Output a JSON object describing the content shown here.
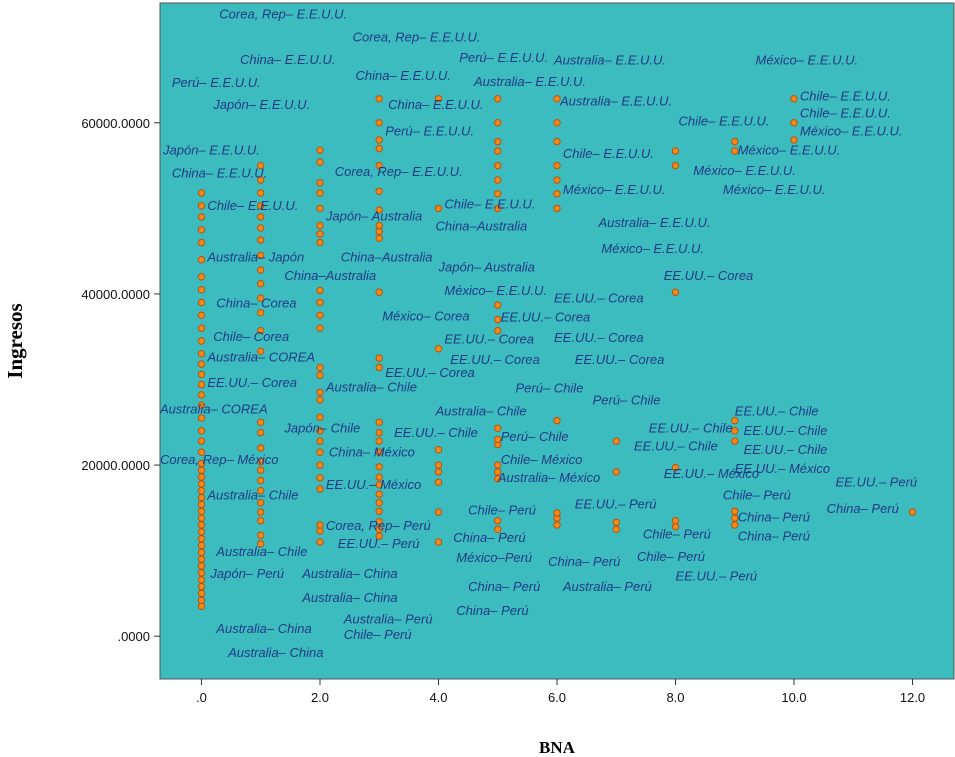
{
  "chart_data": {
    "type": "scatter",
    "title": "",
    "xlabel": "BNA",
    "ylabel": "Ingresos",
    "xlim": [
      -0.7,
      12.7
    ],
    "ylim": [
      -5000,
      74000
    ],
    "x_ticks": [
      ".0",
      "2.0",
      "4.0",
      "6.0",
      "8.0",
      "10.0",
      "12.0"
    ],
    "y_ticks": [
      ".0000",
      "20000.0000",
      "40000.0000",
      "60000.0000"
    ],
    "grid": false,
    "colors": {
      "plot_bg": "#3dbcc0",
      "marker_fill": "#f08a1c",
      "marker_stroke": "#b5520a",
      "label_text": "#1f3b84"
    },
    "points": [
      {
        "x": 0,
        "y": 3500
      },
      {
        "x": 0,
        "y": 4200
      },
      {
        "x": 0,
        "y": 5000
      },
      {
        "x": 0,
        "y": 5800
      },
      {
        "x": 0,
        "y": 6600
      },
      {
        "x": 0,
        "y": 7400
      },
      {
        "x": 0,
        "y": 8200
      },
      {
        "x": 0,
        "y": 9000
      },
      {
        "x": 0,
        "y": 9800
      },
      {
        "x": 0,
        "y": 10600
      },
      {
        "x": 0,
        "y": 11400
      },
      {
        "x": 0,
        "y": 12200
      },
      {
        "x": 0,
        "y": 13000
      },
      {
        "x": 0,
        "y": 13800
      },
      {
        "x": 0,
        "y": 14600
      },
      {
        "x": 0,
        "y": 15400
      },
      {
        "x": 0,
        "y": 16200
      },
      {
        "x": 0,
        "y": 17000
      },
      {
        "x": 0,
        "y": 17800
      },
      {
        "x": 0,
        "y": 18600
      },
      {
        "x": 0,
        "y": 19400
      },
      {
        "x": 0,
        "y": 20200
      },
      {
        "x": 0,
        "y": 21500
      },
      {
        "x": 0,
        "y": 22800
      },
      {
        "x": 0,
        "y": 24000
      },
      {
        "x": 0,
        "y": 25500
      },
      {
        "x": 0,
        "y": 27000
      },
      {
        "x": 0,
        "y": 28200
      },
      {
        "x": 0,
        "y": 29400
      },
      {
        "x": 0,
        "y": 30600
      },
      {
        "x": 0,
        "y": 31800
      },
      {
        "x": 0,
        "y": 33000
      },
      {
        "x": 0,
        "y": 34500
      },
      {
        "x": 0,
        "y": 36000
      },
      {
        "x": 0,
        "y": 37500
      },
      {
        "x": 0,
        "y": 39000
      },
      {
        "x": 0,
        "y": 40500
      },
      {
        "x": 0,
        "y": 42000
      },
      {
        "x": 0,
        "y": 44000
      },
      {
        "x": 0,
        "y": 46000
      },
      {
        "x": 0,
        "y": 47500
      },
      {
        "x": 0,
        "y": 49000
      },
      {
        "x": 0,
        "y": 50300
      },
      {
        "x": 0,
        "y": 51800
      },
      {
        "x": 1,
        "y": 10800
      },
      {
        "x": 1,
        "y": 11800
      },
      {
        "x": 1,
        "y": 13500
      },
      {
        "x": 1,
        "y": 14500
      },
      {
        "x": 1,
        "y": 15600
      },
      {
        "x": 1,
        "y": 17000
      },
      {
        "x": 1,
        "y": 18200
      },
      {
        "x": 1,
        "y": 19400
      },
      {
        "x": 1,
        "y": 20400
      },
      {
        "x": 1,
        "y": 22000
      },
      {
        "x": 1,
        "y": 23800
      },
      {
        "x": 1,
        "y": 25000
      },
      {
        "x": 1,
        "y": 33300
      },
      {
        "x": 1,
        "y": 35700
      },
      {
        "x": 1,
        "y": 37800
      },
      {
        "x": 1,
        "y": 39500
      },
      {
        "x": 1,
        "y": 41200
      },
      {
        "x": 1,
        "y": 42800
      },
      {
        "x": 1,
        "y": 44500
      },
      {
        "x": 1,
        "y": 46300
      },
      {
        "x": 1,
        "y": 47700
      },
      {
        "x": 1,
        "y": 49000
      },
      {
        "x": 1,
        "y": 50300
      },
      {
        "x": 1,
        "y": 51800
      },
      {
        "x": 1,
        "y": 53300
      },
      {
        "x": 1,
        "y": 55000
      },
      {
        "x": 2,
        "y": 11000
      },
      {
        "x": 2,
        "y": 12300
      },
      {
        "x": 2,
        "y": 13000
      },
      {
        "x": 2,
        "y": 17200
      },
      {
        "x": 2,
        "y": 18500
      },
      {
        "x": 2,
        "y": 20000
      },
      {
        "x": 2,
        "y": 21500
      },
      {
        "x": 2,
        "y": 22800
      },
      {
        "x": 2,
        "y": 24000
      },
      {
        "x": 2,
        "y": 25600
      },
      {
        "x": 2,
        "y": 27600
      },
      {
        "x": 2,
        "y": 28500
      },
      {
        "x": 2,
        "y": 30500
      },
      {
        "x": 2,
        "y": 31400
      },
      {
        "x": 2,
        "y": 36000
      },
      {
        "x": 2,
        "y": 37500
      },
      {
        "x": 2,
        "y": 39000
      },
      {
        "x": 2,
        "y": 40400
      },
      {
        "x": 2,
        "y": 46000
      },
      {
        "x": 2,
        "y": 47000
      },
      {
        "x": 2,
        "y": 48000
      },
      {
        "x": 2,
        "y": 50000
      },
      {
        "x": 2,
        "y": 51800
      },
      {
        "x": 2,
        "y": 53000
      },
      {
        "x": 2,
        "y": 55400
      },
      {
        "x": 2,
        "y": 56800
      },
      {
        "x": 3,
        "y": 11700
      },
      {
        "x": 3,
        "y": 12500
      },
      {
        "x": 3,
        "y": 13400
      },
      {
        "x": 3,
        "y": 14600
      },
      {
        "x": 3,
        "y": 15600
      },
      {
        "x": 3,
        "y": 16600
      },
      {
        "x": 3,
        "y": 17700
      },
      {
        "x": 3,
        "y": 18600
      },
      {
        "x": 3,
        "y": 19800
      },
      {
        "x": 3,
        "y": 21500
      },
      {
        "x": 3,
        "y": 22800
      },
      {
        "x": 3,
        "y": 23800
      },
      {
        "x": 3,
        "y": 25000
      },
      {
        "x": 3,
        "y": 31400
      },
      {
        "x": 3,
        "y": 32500
      },
      {
        "x": 3,
        "y": 40200
      },
      {
        "x": 3,
        "y": 46500
      },
      {
        "x": 3,
        "y": 47300
      },
      {
        "x": 3,
        "y": 48000
      },
      {
        "x": 3,
        "y": 49800
      },
      {
        "x": 3,
        "y": 52000
      },
      {
        "x": 3,
        "y": 55000
      },
      {
        "x": 3,
        "y": 57000
      },
      {
        "x": 3,
        "y": 58000
      },
      {
        "x": 3,
        "y": 60000
      },
      {
        "x": 3,
        "y": 62800
      },
      {
        "x": 4,
        "y": 11000
      },
      {
        "x": 4,
        "y": 14500
      },
      {
        "x": 4,
        "y": 18000
      },
      {
        "x": 4,
        "y": 19200
      },
      {
        "x": 4,
        "y": 20000
      },
      {
        "x": 4,
        "y": 21800
      },
      {
        "x": 4,
        "y": 33600
      },
      {
        "x": 4,
        "y": 50000
      },
      {
        "x": 4,
        "y": 62800
      },
      {
        "x": 5,
        "y": 12500
      },
      {
        "x": 5,
        "y": 13500
      },
      {
        "x": 5,
        "y": 18400
      },
      {
        "x": 5,
        "y": 19200
      },
      {
        "x": 5,
        "y": 20000
      },
      {
        "x": 5,
        "y": 22400
      },
      {
        "x": 5,
        "y": 23000
      },
      {
        "x": 5,
        "y": 24300
      },
      {
        "x": 5,
        "y": 35700
      },
      {
        "x": 5,
        "y": 37000
      },
      {
        "x": 5,
        "y": 38700
      },
      {
        "x": 5,
        "y": 50000
      },
      {
        "x": 5,
        "y": 51700
      },
      {
        "x": 5,
        "y": 53300
      },
      {
        "x": 5,
        "y": 55000
      },
      {
        "x": 5,
        "y": 56700
      },
      {
        "x": 5,
        "y": 57800
      },
      {
        "x": 5,
        "y": 60000
      },
      {
        "x": 5,
        "y": 62800
      },
      {
        "x": 6,
        "y": 13000
      },
      {
        "x": 6,
        "y": 13800
      },
      {
        "x": 6,
        "y": 14400
      },
      {
        "x": 6,
        "y": 25200
      },
      {
        "x": 6,
        "y": 50000
      },
      {
        "x": 6,
        "y": 51700
      },
      {
        "x": 6,
        "y": 53300
      },
      {
        "x": 6,
        "y": 55000
      },
      {
        "x": 6,
        "y": 57800
      },
      {
        "x": 6,
        "y": 60000
      },
      {
        "x": 6,
        "y": 62800
      },
      {
        "x": 7,
        "y": 12500
      },
      {
        "x": 7,
        "y": 13300
      },
      {
        "x": 7,
        "y": 19200
      },
      {
        "x": 7,
        "y": 22800
      },
      {
        "x": 8,
        "y": 12800
      },
      {
        "x": 8,
        "y": 13500
      },
      {
        "x": 8,
        "y": 19700
      },
      {
        "x": 8,
        "y": 40200
      },
      {
        "x": 8,
        "y": 55000
      },
      {
        "x": 8,
        "y": 56700
      },
      {
        "x": 9,
        "y": 13000
      },
      {
        "x": 9,
        "y": 13800
      },
      {
        "x": 9,
        "y": 14600
      },
      {
        "x": 9,
        "y": 22800
      },
      {
        "x": 9,
        "y": 24000
      },
      {
        "x": 9,
        "y": 25200
      },
      {
        "x": 9,
        "y": 56700
      },
      {
        "x": 9,
        "y": 57800
      },
      {
        "x": 10,
        "y": 58000
      },
      {
        "x": 10,
        "y": 60000
      },
      {
        "x": 10,
        "y": 62800
      },
      {
        "x": 12,
        "y": 14500
      }
    ],
    "annotations": [
      {
        "text": "Corea, Rep– E.E.U.U.",
        "x": 0.3,
        "y": 72200
      },
      {
        "text": "Corea, Rep– E.E.U.U.",
        "x": 2.55,
        "y": 69500
      },
      {
        "text": "China– E.E.U.U.",
        "x": 0.65,
        "y": 66900
      },
      {
        "text": "Perú– E.E.U.U.",
        "x": 4.35,
        "y": 67100
      },
      {
        "text": "Australia– E.E.U.U.",
        "x": 5.95,
        "y": 66800
      },
      {
        "text": "México– E.E.U.U.",
        "x": 9.35,
        "y": 66800
      },
      {
        "text": "Perú– E.E.U.U.",
        "x": -0.5,
        "y": 64200
      },
      {
        "text": "China– E.E.U.U.",
        "x": 2.6,
        "y": 65000
      },
      {
        "text": "Australia– E.E.U.U.",
        "x": 4.6,
        "y": 64300
      },
      {
        "text": "Chile– E.E.U.U.",
        "x": 10.1,
        "y": 62600
      },
      {
        "text": "Japón– E.E.U.U.",
        "x": 0.2,
        "y": 61600
      },
      {
        "text": "China– E.E.U.U.",
        "x": 3.15,
        "y": 61600
      },
      {
        "text": "Australia– E.E.U.U.",
        "x": 6.05,
        "y": 62000
      },
      {
        "text": "Chile– E.E.U.U.",
        "x": 8.05,
        "y": 59700
      },
      {
        "text": "Chile– E.E.U.U.",
        "x": 10.1,
        "y": 60600
      },
      {
        "text": "Perú– E.E.U.U.",
        "x": 3.1,
        "y": 58500
      },
      {
        "text": "México– E.E.U.U.",
        "x": 10.1,
        "y": 58500
      },
      {
        "text": "Japón– E.E.U.U.",
        "x": -0.65,
        "y": 56300
      },
      {
        "text": "Chile– E.E.U.U.",
        "x": 6.1,
        "y": 55900
      },
      {
        "text": "México– E.E.U.U.",
        "x": 9.05,
        "y": 56300
      },
      {
        "text": "Corea, Rep– E.E.U.U.",
        "x": 2.25,
        "y": 53800
      },
      {
        "text": "México– E.E.U.U.",
        "x": 8.3,
        "y": 53900
      },
      {
        "text": "China– E.E.U.U.",
        "x": -0.5,
        "y": 53600
      },
      {
        "text": "México– E.E.U.U.",
        "x": 6.1,
        "y": 51700
      },
      {
        "text": "México– E.E.U.U.",
        "x": 8.8,
        "y": 51700
      },
      {
        "text": "Chile– E.E.U.U.",
        "x": 0.1,
        "y": 49800
      },
      {
        "text": "Chile– E.E.U.U.",
        "x": 4.1,
        "y": 50000
      },
      {
        "text": "Japón– Australia",
        "x": 2.1,
        "y": 48600
      },
      {
        "text": "China–Australia",
        "x": 3.95,
        "y": 47400
      },
      {
        "text": "Australia– E.E.U.U.",
        "x": 6.7,
        "y": 47800
      },
      {
        "text": "Australia– Japón",
        "x": 0.1,
        "y": 43800
      },
      {
        "text": "China–Australia",
        "x": 2.35,
        "y": 43800
      },
      {
        "text": "México– E.E.U.U.",
        "x": 6.75,
        "y": 44800
      },
      {
        "text": "Japón– Australia",
        "x": 4.0,
        "y": 42600
      },
      {
        "text": "China–Australia",
        "x": 1.4,
        "y": 41600
      },
      {
        "text": "EE.UU.– Corea",
        "x": 7.8,
        "y": 41600
      },
      {
        "text": "México– E.E.U.U.",
        "x": 4.1,
        "y": 39900
      },
      {
        "text": "EE.UU.– Corea",
        "x": 5.95,
        "y": 39000
      },
      {
        "text": "China– Corea",
        "x": 0.25,
        "y": 38400
      },
      {
        "text": "México– Corea",
        "x": 3.05,
        "y": 36900
      },
      {
        "text": "EE.UU.– Corea",
        "x": 5.05,
        "y": 36800
      },
      {
        "text": "Chile– Corea",
        "x": 0.2,
        "y": 34500
      },
      {
        "text": "EE.UU.– Corea",
        "x": 4.1,
        "y": 34200
      },
      {
        "text": "EE.UU.– Corea",
        "x": 5.95,
        "y": 34400
      },
      {
        "text": "Australia– COREA",
        "x": 0.1,
        "y": 32100
      },
      {
        "text": "EE.UU.– Corea",
        "x": 4.2,
        "y": 31800
      },
      {
        "text": "EE.UU.– Corea",
        "x": 6.3,
        "y": 31800
      },
      {
        "text": "EE.UU.– Corea",
        "x": 3.1,
        "y": 30300
      },
      {
        "text": "EE.UU.– Corea",
        "x": 0.1,
        "y": 29100
      },
      {
        "text": "Australia– Chile",
        "x": 2.1,
        "y": 28600
      },
      {
        "text": "Perú– Chile",
        "x": 5.3,
        "y": 28500
      },
      {
        "text": "Perú– Chile",
        "x": 6.6,
        "y": 27100
      },
      {
        "text": "Australia– COREA",
        "x": -0.7,
        "y": 26000
      },
      {
        "text": "Australia– Chile",
        "x": 3.95,
        "y": 25800
      },
      {
        "text": "EE.UU.– Chile",
        "x": 9.0,
        "y": 25800
      },
      {
        "text": "Japón– Chile",
        "x": 1.4,
        "y": 23800
      },
      {
        "text": "EE.UU.– Chile",
        "x": 7.55,
        "y": 23800
      },
      {
        "text": "EE.UU.– Chile",
        "x": 9.15,
        "y": 23500
      },
      {
        "text": "EE.UU.– Chile",
        "x": 3.25,
        "y": 23300
      },
      {
        "text": "Perú– Chile",
        "x": 5.05,
        "y": 22800
      },
      {
        "text": "EE.UU.– Chile",
        "x": 7.3,
        "y": 21700
      },
      {
        "text": "EE.UU.– Chile",
        "x": 9.15,
        "y": 21300
      },
      {
        "text": "China– México",
        "x": 2.15,
        "y": 21000
      },
      {
        "text": "Chile– México",
        "x": 5.05,
        "y": 20100
      },
      {
        "text": "Corea, Rep– México",
        "x": -0.7,
        "y": 20100
      },
      {
        "text": "EE.UU.– México",
        "x": 9.0,
        "y": 19100
      },
      {
        "text": "EE.UU.– México",
        "x": 7.8,
        "y": 18500
      },
      {
        "text": "Australia– México",
        "x": 5.0,
        "y": 18000
      },
      {
        "text": "EE.UU.– México",
        "x": 2.1,
        "y": 17200
      },
      {
        "text": "EE.UU.– Perú",
        "x": 10.7,
        "y": 17500
      },
      {
        "text": "Australia– Chile",
        "x": 0.1,
        "y": 16000
      },
      {
        "text": "Chile– Perú",
        "x": 8.8,
        "y": 16000
      },
      {
        "text": "EE.UU.– Perú",
        "x": 6.3,
        "y": 14900
      },
      {
        "text": "China– Perú",
        "x": 10.55,
        "y": 14400
      },
      {
        "text": "Chile– Perú",
        "x": 4.5,
        "y": 14200
      },
      {
        "text": "China– Perú",
        "x": 9.05,
        "y": 13400
      },
      {
        "text": "Corea, Rep– Perú",
        "x": 2.1,
        "y": 12400
      },
      {
        "text": "Chile– Perú",
        "x": 7.45,
        "y": 11400
      },
      {
        "text": "China– Perú",
        "x": 9.05,
        "y": 11200
      },
      {
        "text": "China– Perú",
        "x": 4.25,
        "y": 11000
      },
      {
        "text": "EE.UU.– Perú",
        "x": 2.3,
        "y": 10300
      },
      {
        "text": "Australia– Chile",
        "x": 0.25,
        "y": 9400
      },
      {
        "text": "Chile– Perú",
        "x": 7.35,
        "y": 8800
      },
      {
        "text": "México–Perú",
        "x": 4.3,
        "y": 8700
      },
      {
        "text": "China– Perú",
        "x": 5.85,
        "y": 8200
      },
      {
        "text": "Japón– Perú",
        "x": 0.15,
        "y": 6800
      },
      {
        "text": "Australia– China",
        "x": 1.7,
        "y": 6800
      },
      {
        "text": "EE.UU.– Perú",
        "x": 8.0,
        "y": 6500
      },
      {
        "text": "China– Perú",
        "x": 4.5,
        "y": 5300
      },
      {
        "text": "Australia– Perú",
        "x": 6.1,
        "y": 5300
      },
      {
        "text": "Australia– China",
        "x": 1.7,
        "y": 4000
      },
      {
        "text": "China– Perú",
        "x": 4.3,
        "y": 2500
      },
      {
        "text": "Australia– Perú",
        "x": 2.4,
        "y": 1500
      },
      {
        "text": "Australia– China",
        "x": 0.25,
        "y": 400
      },
      {
        "text": "Chile– Perú",
        "x": 2.4,
        "y": -300
      },
      {
        "text": "Australia– China",
        "x": 0.45,
        "y": -2400
      }
    ]
  }
}
